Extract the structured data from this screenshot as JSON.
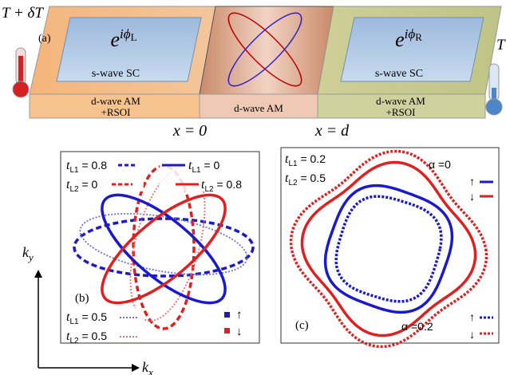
{
  "panel_a": {
    "label": "(a)",
    "left_temperature": "T + δT",
    "right_temperature": "T",
    "left_lead": {
      "phase": {
        "base": "e",
        "exponent": "iϕ",
        "subscript": "L"
      },
      "sc": "s-wave SC",
      "am": "d-wave AM",
      "rsoi": "+RSOI"
    },
    "middle": {
      "am": "d-wave AM"
    },
    "right_lead": {
      "phase": {
        "base": "e",
        "exponent": "iϕ",
        "subscript": "R"
      },
      "sc": "s-wave SC",
      "am": "d-wave AM",
      "rsoi": "+RSOI"
    },
    "interfaces": [
      "x = 0",
      "x = d"
    ]
  },
  "panel_b": {
    "label": "(b)",
    "legend": [
      {
        "symbol": "t",
        "subscript": "L1",
        "rest": " = 0.8"
      },
      {
        "symbol": "t",
        "subscript": "L2",
        "rest": " = 0"
      },
      {
        "symbol": "t",
        "subscript": "L1",
        "rest": " = 0"
      },
      {
        "symbol": "t",
        "subscript": "L2",
        "rest": " = 0.8"
      },
      {
        "symbol": "t",
        "subscript": "L1",
        "rest": " = 0.5"
      },
      {
        "symbol": "t",
        "subscript": "L2",
        "rest": " = 0.5"
      }
    ],
    "spin_up": "↑",
    "spin_down": "↓"
  },
  "panel_c": {
    "label": "(c)",
    "legend": [
      {
        "symbol": "t",
        "subscript": "L1",
        "rest": " = 0.2"
      },
      {
        "symbol": "t",
        "subscript": "L2",
        "rest": " = 0.5"
      }
    ],
    "alpha_a": "α =0",
    "alpha_b": "α =0.2",
    "spin_up_a": "↑",
    "spin_down_a": "↓",
    "spin_up_b": "↑",
    "spin_down_b": "↓"
  },
  "axes": {
    "ky": {
      "base": "k",
      "subscript": "y"
    },
    "kx": {
      "base": "k",
      "subscript": "x"
    }
  }
}
